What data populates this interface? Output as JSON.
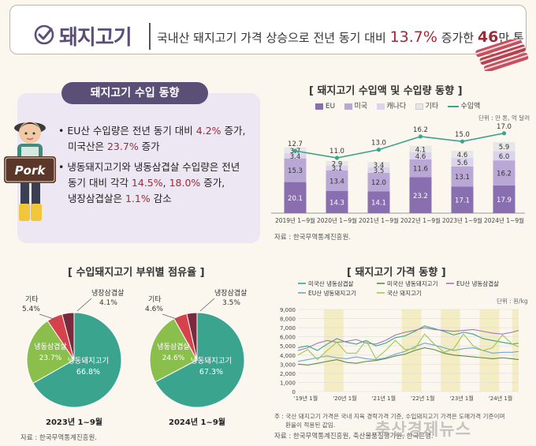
{
  "header": {
    "title": "돼지고기",
    "text_part1": "국내산 돼지고기 가격 상승으로 전년 동기 대비 ",
    "highlight_pct": "13.7%",
    "text_part2": " 증가한 ",
    "highlight_qty": "46",
    "text_part3": "만 톤"
  },
  "import_trend": {
    "pill_label": "돼지고기 수입 동향",
    "bullet1_a": "EU산 수입량은 전년 동기 대비 ",
    "bullet1_pct1": "4.2%",
    "bullet1_b": " 증가,",
    "bullet1_c": "미국산은 ",
    "bullet1_pct2": "23.7%",
    "bullet1_d": " 증가",
    "bullet2_a": "냉동돼지고기와 냉동삼겹살 수입량은 전년",
    "bullet2_b": "동기 대비 각각 ",
    "bullet2_pct1": "14.5%",
    "bullet2_c": ", ",
    "bullet2_pct2": "18.0%",
    "bullet2_d": " 증가,",
    "bullet2_e": "냉장삼겹살은 ",
    "bullet2_pct3": "1.1%",
    "bullet2_f": " 감소",
    "pork_sign": "Pork"
  },
  "colors": {
    "eu": "#8a6fb0",
    "us": "#b9a8d6",
    "canada": "#dcd3ec",
    "other": "#e7e7e7",
    "amount_line": "#3aa48e",
    "pie_teal": "#3aa48e",
    "pie_green": "#8bbf4c",
    "pie_red": "#d6424c",
    "pie_maroon": "#7a2a3c",
    "accent": "#9b2b38",
    "purple": "#5b4f78"
  },
  "stack_chart": {
    "title": "[ 돼지고기 수입액 및 수입량 동향 ]",
    "unit": "단위 : 만 톤, 억 달러",
    "source": "자료 : 한국무역통계진흥원.",
    "legend": [
      "EU",
      "미국",
      "캐나다",
      "기타",
      "수입액"
    ]
  },
  "pie_section": {
    "title": "[ 수입돼지고기 부위별 점유율 ]",
    "source": "자료 : 한국무역통계진흥원.",
    "pies": [
      {
        "caption": "2023년 1~9월",
        "labels": {
          "frozen_pork": "냉동돼지고기",
          "frozen_belly": "냉동삼겹살",
          "chilled_belly": "냉장삼겹살",
          "other": "기타"
        },
        "values": {
          "frozen_pork": "66.8%",
          "frozen_belly": "23.7%",
          "chilled_belly": "4.1%",
          "other": "5.4%"
        }
      },
      {
        "caption": "2024년 1~9월",
        "labels": {
          "frozen_pork": "냉동돼지고기",
          "frozen_belly": "냉동삼겹살",
          "chilled_belly": "냉장삼겹살",
          "other": "기타"
        },
        "values": {
          "frozen_pork": "67.3%",
          "frozen_belly": "24.6%",
          "chilled_belly": "3.5%",
          "other": "4.6%"
        }
      }
    ]
  },
  "price_chart": {
    "title": "[ 돼지고기 가격 동향 ]",
    "unit": "단위 : 원/kg",
    "legend": [
      "미국산 냉동삼겹살",
      "미국산 냉동돼지고기",
      "EU산 냉동삼겹살",
      "EU산 냉동돼지고기",
      "국산 돼지고기"
    ],
    "note1": "주 : 국산 돼지고기 가격은 국내 지육 경락가격 기준, 수입돼지고기 가격은 도매가격 기준이며",
    "note2": "환율이 적용된 값임.",
    "source": "자료 : 한국무역통계진흥원, 축산물품질평가원, 한국은행."
  },
  "watermark": "축산경제뉴스",
  "chart_data": [
    {
      "type": "bar",
      "title": "[ 돼지고기 수입액 및 수입량 동향 ]",
      "categories": [
        "2019년 1~9월",
        "2020년 1~9월",
        "2021년 1~9월",
        "2022년 1~9월",
        "2023년 1~9월",
        "2024년 1~9월"
      ],
      "series": [
        {
          "name": "EU",
          "values": [
            20.1,
            14.3,
            14.1,
            23.2,
            17.1,
            17.9
          ]
        },
        {
          "name": "미국",
          "values": [
            15.3,
            13.4,
            12.0,
            11.6,
            13.1,
            16.2
          ]
        },
        {
          "name": "캐나다",
          "values": [
            3.4,
            3.1,
            3.5,
            4.6,
            5.6,
            6.0
          ]
        },
        {
          "name": "기타",
          "values": [
            3.7,
            2.9,
            3.4,
            4.1,
            4.6,
            5.9
          ]
        },
        {
          "name": "수입액",
          "values": [
            12.7,
            11.0,
            13.0,
            16.2,
            15.0,
            17.0
          ]
        }
      ],
      "stacked": true,
      "line_series": "수입액"
    },
    {
      "type": "pie",
      "title": "2023년 1~9월",
      "labels": [
        "냉동돼지고기",
        "냉동삼겹살",
        "기타",
        "냉장삼겹살"
      ],
      "values": [
        66.8,
        23.7,
        5.4,
        4.1
      ]
    },
    {
      "type": "pie",
      "title": "2024년 1~9월",
      "labels": [
        "냉동돼지고기",
        "냉동삼겹살",
        "기타",
        "냉장삼겹살"
      ],
      "values": [
        67.3,
        24.6,
        4.6,
        3.5
      ]
    },
    {
      "type": "line",
      "title": "[ 돼지고기 가격 동향 ]",
      "ylim": [
        0,
        9000
      ],
      "yticks": [
        "0",
        "1,000",
        "2,000",
        "3,000",
        "4,000",
        "5,000",
        "6,000",
        "7,000",
        "8,000",
        "9,000"
      ],
      "xticks": [
        "'19년 1월",
        "'20년 1월",
        "'21년 1월",
        "'22년 1월",
        "'23년 1월",
        "'24년 1월"
      ],
      "x": [
        0,
        3,
        6,
        9,
        12,
        15,
        18,
        21,
        24,
        27,
        30,
        33,
        36,
        39,
        42,
        45,
        48,
        51,
        54,
        57,
        60,
        63,
        66,
        68
      ],
      "series": [
        {
          "name": "미국산 냉동삼겹살",
          "color": "#3aa48e",
          "values": [
            4800,
            5000,
            4500,
            5200,
            5800,
            5400,
            5200,
            5600,
            5000,
            5300,
            5900,
            6100,
            6600,
            7200,
            6900,
            6600,
            6200,
            6500,
            6300,
            5800,
            5600,
            5400,
            5200,
            5300
          ]
        },
        {
          "name": "미국산 냉동돼지고기",
          "color": "#5a8a4a",
          "values": [
            3000,
            2900,
            3100,
            3300,
            3500,
            3200,
            3100,
            3300,
            3400,
            3600,
            3900,
            4100,
            4500,
            4800,
            4600,
            4200,
            4000,
            3900,
            3800,
            3700,
            3600,
            3700,
            3600,
            3500
          ]
        },
        {
          "name": "EU산 냉동삼겹살",
          "color": "#9b7ab8",
          "values": [
            4500,
            4800,
            5300,
            5600,
            5400,
            5500,
            5700,
            5300,
            5200,
            5600,
            6200,
            6500,
            6700,
            7000,
            6800,
            6700,
            6600,
            6700,
            6800,
            6600,
            6400,
            6300,
            6500,
            6700
          ]
        },
        {
          "name": "EU산 냉동돼지고기",
          "color": "#6aa8d8",
          "values": [
            3300,
            3500,
            3700,
            3900,
            3700,
            3600,
            3800,
            3600,
            3500,
            3700,
            4100,
            4400,
            4900,
            5300,
            5100,
            4800,
            4500,
            4700,
            4800,
            4500,
            4200,
            4300,
            4300,
            4400
          ]
        },
        {
          "name": "국산 돼지고기",
          "color": "#9ccb4a",
          "values": [
            4000,
            4600,
            3500,
            4500,
            5400,
            4200,
            4200,
            5600,
            3600,
            4500,
            5600,
            4600,
            4700,
            6300,
            5200,
            4300,
            4700,
            6300,
            5000,
            4500,
            4800,
            6200,
            5200,
            4900
          ]
        }
      ],
      "shaded_ranges": [
        [
          8,
          14
        ],
        [
          32,
          38
        ],
        [
          44,
          50
        ],
        [
          56,
          62
        ],
        [
          66,
          68
        ]
      ]
    }
  ]
}
